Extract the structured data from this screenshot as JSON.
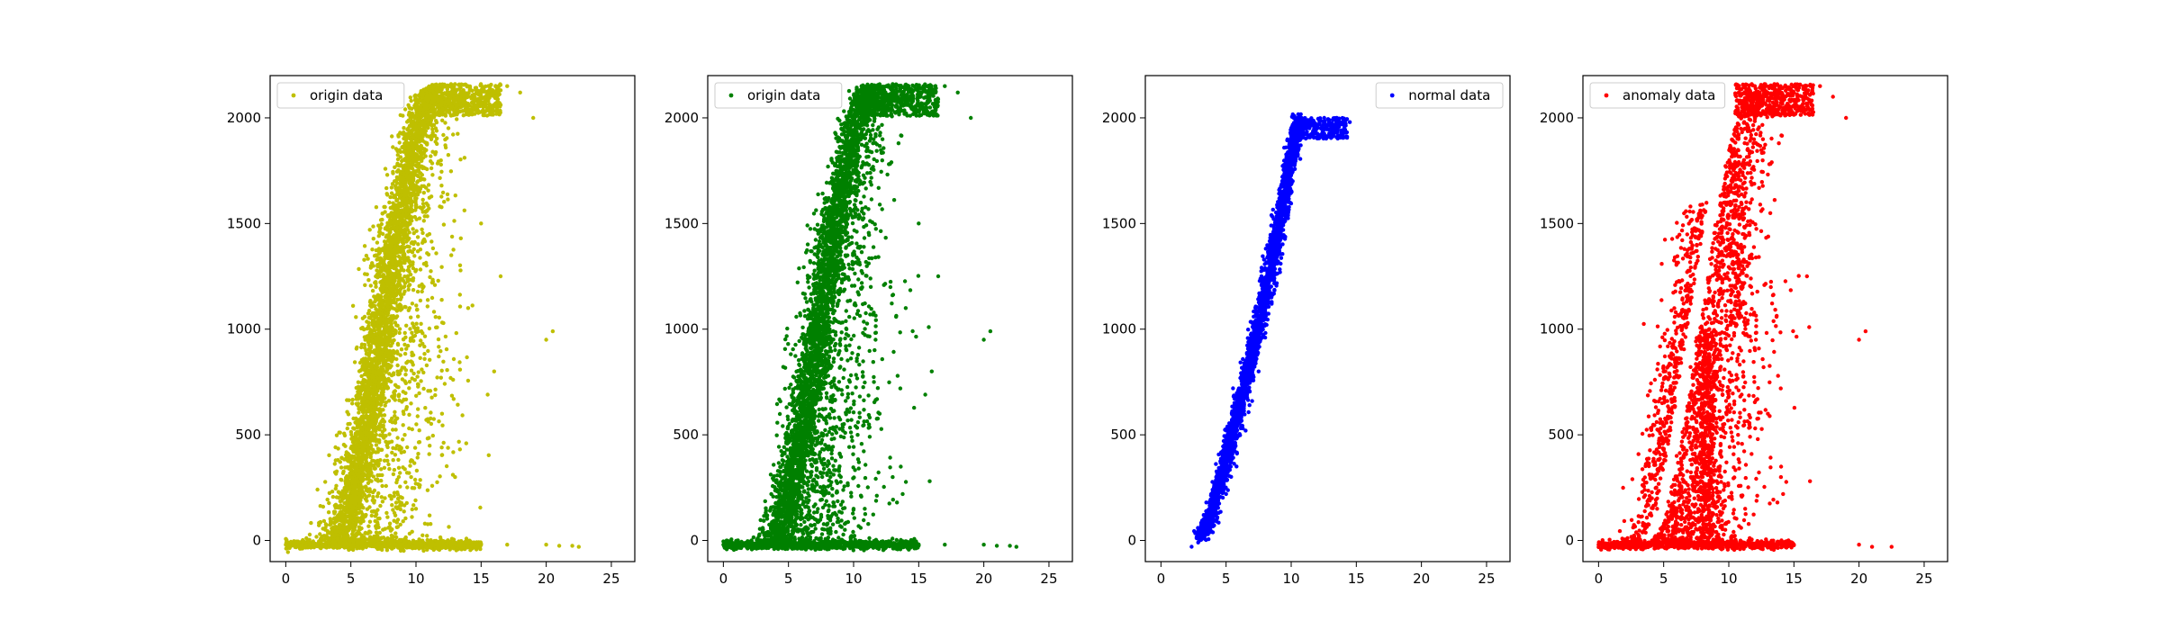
{
  "chart_data": [
    {
      "type": "scatter",
      "legend": "origin data",
      "legend_position": "top-left",
      "color": "#bfbf00",
      "xlim": [
        -1.2,
        26.8
      ],
      "ylim": [
        -100,
        2200
      ],
      "xticks": [
        0,
        5,
        10,
        15,
        20,
        25
      ],
      "yticks": [
        0,
        500,
        1000,
        1500,
        2000
      ],
      "distribution": "full",
      "series": [
        {
          "name": "origin data",
          "points": [
            [
              0.0,
              -20
            ],
            [
              1.0,
              -25
            ],
            [
              2.0,
              -15
            ],
            [
              3.0,
              -30
            ],
            [
              4.0,
              10
            ],
            [
              4.5,
              120
            ],
            [
              5.0,
              280
            ],
            [
              5.5,
              420
            ],
            [
              6.0,
              560
            ],
            [
              6.5,
              720
            ],
            [
              7.0,
              880
            ],
            [
              7.5,
              1040
            ],
            [
              8.0,
              1220
            ],
            [
              8.5,
              1400
            ],
            [
              9.0,
              1560
            ],
            [
              9.5,
              1720
            ],
            [
              10.0,
              1880
            ],
            [
              10.5,
              2020
            ],
            [
              11.0,
              2120
            ],
            [
              12.0,
              2150
            ],
            [
              13.0,
              2160
            ],
            [
              14.0,
              2150
            ],
            [
              15.0,
              2100
            ],
            [
              16.0,
              2120
            ],
            [
              17.0,
              2150
            ],
            [
              18.0,
              2120
            ],
            [
              19.0,
              2000
            ],
            [
              15.0,
              1500
            ],
            [
              16.5,
              1250
            ],
            [
              14.0,
              1100
            ],
            [
              12.0,
              600
            ],
            [
              13.0,
              300
            ],
            [
              10.0,
              150
            ],
            [
              8.0,
              80
            ],
            [
              15.0,
              -20
            ],
            [
              17.0,
              -20
            ],
            [
              20.0,
              -20
            ],
            [
              21.0,
              -25
            ],
            [
              22.5,
              -30
            ],
            [
              22.0,
              -25
            ],
            [
              20.0,
              950
            ],
            [
              20.5,
              990
            ],
            [
              15.5,
              690
            ],
            [
              16.0,
              800
            ]
          ]
        }
      ]
    },
    {
      "type": "scatter",
      "legend": "origin data",
      "legend_position": "top-left",
      "color": "#008000",
      "xlim": [
        -1.2,
        26.8
      ],
      "ylim": [
        -100,
        2200
      ],
      "xticks": [
        0,
        5,
        10,
        15,
        20,
        25
      ],
      "yticks": [
        0,
        500,
        1000,
        1500,
        2000
      ],
      "distribution": "full",
      "series": [
        {
          "name": "origin data",
          "points": [
            [
              0.0,
              -20
            ],
            [
              1.0,
              -25
            ],
            [
              2.0,
              -15
            ],
            [
              3.0,
              -30
            ],
            [
              4.0,
              10
            ],
            [
              4.5,
              120
            ],
            [
              5.0,
              280
            ],
            [
              5.5,
              420
            ],
            [
              6.0,
              560
            ],
            [
              6.5,
              720
            ],
            [
              7.0,
              880
            ],
            [
              7.5,
              1040
            ],
            [
              8.0,
              1220
            ],
            [
              8.5,
              1400
            ],
            [
              9.0,
              1560
            ],
            [
              9.5,
              1720
            ],
            [
              10.0,
              1880
            ],
            [
              10.5,
              2020
            ],
            [
              11.0,
              2120
            ],
            [
              12.0,
              2150
            ],
            [
              13.0,
              2160
            ],
            [
              14.0,
              2150
            ],
            [
              15.0,
              2100
            ],
            [
              16.0,
              2120
            ],
            [
              17.0,
              2150
            ],
            [
              18.0,
              2120
            ],
            [
              19.0,
              2000
            ],
            [
              15.0,
              1500
            ],
            [
              16.5,
              1250
            ],
            [
              14.0,
              1100
            ],
            [
              12.0,
              600
            ],
            [
              13.0,
              300
            ],
            [
              10.0,
              150
            ],
            [
              8.0,
              80
            ],
            [
              15.0,
              -20
            ],
            [
              17.0,
              -20
            ],
            [
              20.0,
              -20
            ],
            [
              21.0,
              -25
            ],
            [
              22.5,
              -30
            ],
            [
              22.0,
              -25
            ],
            [
              20.0,
              950
            ],
            [
              20.5,
              990
            ],
            [
              15.5,
              690
            ],
            [
              16.0,
              800
            ]
          ]
        }
      ]
    },
    {
      "type": "scatter",
      "legend": "normal data",
      "legend_position": "top-right",
      "color": "#0000ff",
      "xlim": [
        -1.2,
        26.8
      ],
      "ylim": [
        -100,
        2200
      ],
      "xticks": [
        0,
        5,
        10,
        15,
        20,
        25
      ],
      "yticks": [
        0,
        500,
        1000,
        1500,
        2000
      ],
      "distribution": "normal",
      "series": [
        {
          "name": "normal data",
          "points": [
            [
              2.8,
              10
            ],
            [
              3.5,
              50
            ],
            [
              4.2,
              120
            ],
            [
              5.0,
              220
            ],
            [
              5.8,
              350
            ],
            [
              6.5,
              520
            ],
            [
              7.0,
              660
            ],
            [
              7.5,
              800
            ],
            [
              8.0,
              960
            ],
            [
              8.5,
              1120
            ],
            [
              9.0,
              1320
            ],
            [
              9.5,
              1520
            ],
            [
              10.0,
              1700
            ],
            [
              10.5,
              1820
            ],
            [
              11.5,
              1920
            ],
            [
              12.5,
              1980
            ],
            [
              13.5,
              2000
            ],
            [
              14.5,
              1980
            ]
          ]
        }
      ]
    },
    {
      "type": "scatter",
      "legend": "anomaly data",
      "legend_position": "top-left",
      "color": "#ff0000",
      "xlim": [
        -1.2,
        26.8
      ],
      "ylim": [
        -100,
        2200
      ],
      "xticks": [
        0,
        5,
        10,
        15,
        20,
        25
      ],
      "yticks": [
        0,
        500,
        1000,
        1500,
        2000
      ],
      "distribution": "anomaly",
      "series": [
        {
          "name": "anomaly data",
          "points": [
            [
              0.0,
              -20
            ],
            [
              2.0,
              -25
            ],
            [
              4.0,
              -15
            ],
            [
              6.0,
              -20
            ],
            [
              8.0,
              -25
            ],
            [
              12.0,
              -20
            ],
            [
              15.0,
              -20
            ],
            [
              20.0,
              -20
            ],
            [
              21.0,
              -30
            ],
            [
              22.5,
              -30
            ],
            [
              4.5,
              150
            ],
            [
              6.0,
              400
            ],
            [
              7.5,
              700
            ],
            [
              8.5,
              1000
            ],
            [
              9.0,
              1300
            ],
            [
              10.0,
              1600
            ],
            [
              11.0,
              2050
            ],
            [
              12.0,
              2150
            ],
            [
              13.5,
              2160
            ],
            [
              15.0,
              2120
            ],
            [
              17.0,
              2150
            ],
            [
              18.0,
              2100
            ],
            [
              19.0,
              2000
            ],
            [
              20.0,
              950
            ],
            [
              20.5,
              990
            ],
            [
              13.0,
              600
            ],
            [
              14.0,
              300
            ],
            [
              16.0,
              1250
            ]
          ]
        }
      ]
    }
  ]
}
